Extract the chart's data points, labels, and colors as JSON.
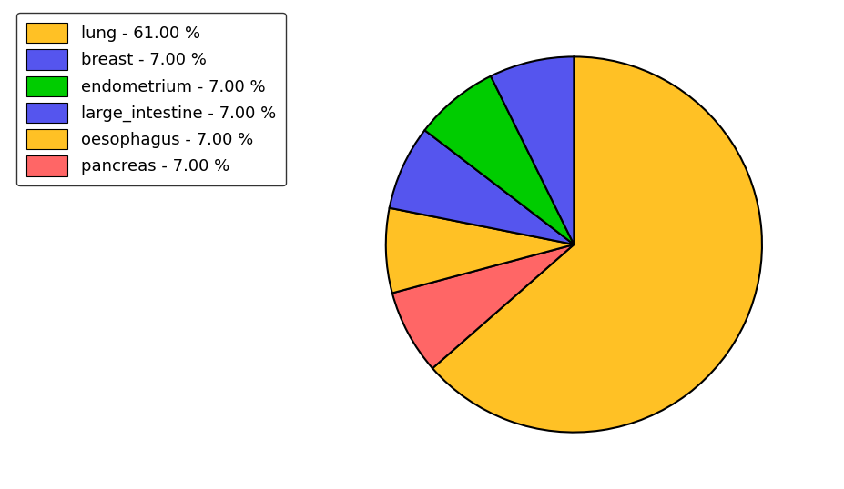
{
  "labels": [
    "lung",
    "pancreas",
    "oesophagus",
    "breast",
    "endometrium",
    "large_intestine"
  ],
  "values": [
    61.0,
    7.0,
    7.0,
    7.0,
    7.0,
    7.0
  ],
  "colors": [
    "#FFC125",
    "#FF6666",
    "#FFC125",
    "#5555EE",
    "#00CC00",
    "#5555EE"
  ],
  "legend_labels": [
    "lung - 61.00 %",
    "breast - 7.00 %",
    "endometrium - 7.00 %",
    "large_intestine - 7.00 %",
    "oesophagus - 7.00 %",
    "pancreas - 7.00 %"
  ],
  "legend_colors": [
    "#FFC125",
    "#5555EE",
    "#00CC00",
    "#5555EE",
    "#FFC125",
    "#FF6666"
  ],
  "startangle": 90,
  "counterclock": false,
  "background_color": "#ffffff",
  "figsize": [
    9.27,
    5.38
  ],
  "dpi": 100
}
